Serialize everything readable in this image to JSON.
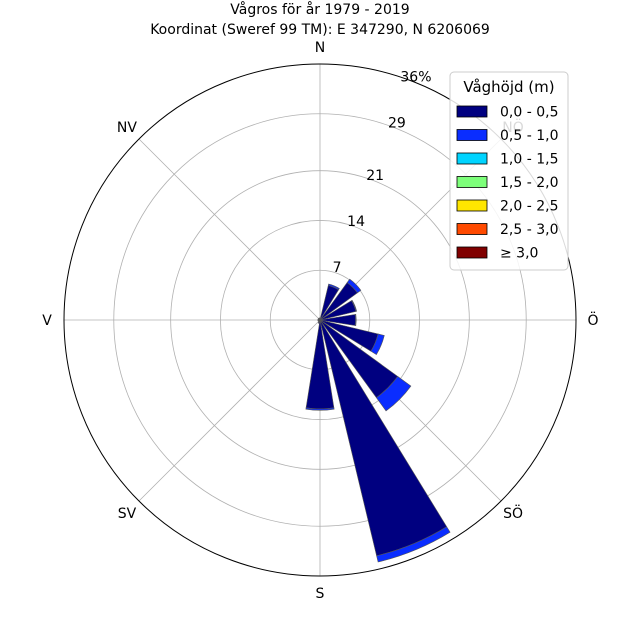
{
  "chart_data": {
    "type": "windrose",
    "title": "Vågros för år 1979 - 2019",
    "subtitle": "Koordinat (Sweref 99 TM): E 347290, N 6206069",
    "directions": [
      "N",
      "NÖ",
      "Ö",
      "SÖ",
      "S",
      "SV",
      "V",
      "NV"
    ],
    "direction_labels": [
      {
        "angle": 0,
        "label": "N"
      },
      {
        "angle": 45,
        "label": "NÖ"
      },
      {
        "angle": 90,
        "label": "Ö"
      },
      {
        "angle": 135,
        "label": "SÖ"
      },
      {
        "angle": 180,
        "label": "S"
      },
      {
        "angle": 225,
        "label": "SV"
      },
      {
        "angle": 270,
        "label": "V"
      },
      {
        "angle": 315,
        "label": "NV"
      }
    ],
    "radial_max": 36,
    "radial_ticks": [
      7,
      14,
      21,
      29,
      36
    ],
    "radial_tick_labels": [
      "7",
      "14",
      "21",
      "29",
      "36%"
    ],
    "legend_title": "Våghöjd (m)",
    "legend_position": "top-right",
    "bins": [
      {
        "label": "0,0 - 0,5",
        "color": "#000080"
      },
      {
        "label": "0,5 - 1,0",
        "color": "#0a2dff"
      },
      {
        "label": "1,0 - 1,5",
        "color": "#00d4ff"
      },
      {
        "label": "1,5 - 2,0",
        "color": "#7dff7a"
      },
      {
        "label": "2,0 - 2,5",
        "color": "#ffe600"
      },
      {
        "label": "2,5 - 3,0",
        "color": "#ff4a00"
      },
      {
        "label": "≥ 3,0",
        "color": "#800000"
      }
    ],
    "sectors": [
      {
        "direction": 22.5,
        "values": [
          5.0,
          0.2,
          0,
          0,
          0,
          0,
          0
        ]
      },
      {
        "direction": 45,
        "values": [
          6.5,
          0.6,
          0,
          0,
          0,
          0,
          0
        ]
      },
      {
        "direction": 67.5,
        "values": [
          5.2,
          0.1,
          0,
          0,
          0,
          0,
          0
        ]
      },
      {
        "direction": 90,
        "values": [
          5.0,
          0.1,
          0,
          0,
          0,
          0,
          0
        ]
      },
      {
        "direction": 112.5,
        "values": [
          8.4,
          0.9,
          0,
          0,
          0,
          0,
          0
        ]
      },
      {
        "direction": 135,
        "values": [
          13.5,
          2.3,
          0,
          0,
          0,
          0,
          0
        ]
      },
      {
        "direction": 157.5,
        "values": [
          34.1,
          0.9,
          0,
          0,
          0,
          0,
          0
        ]
      },
      {
        "direction": 180,
        "values": [
          12.5,
          0.2,
          0,
          0,
          0,
          0,
          0
        ]
      },
      {
        "direction": 202.5,
        "values": [
          0.5,
          0,
          0,
          0,
          0,
          0,
          0
        ]
      },
      {
        "direction": 225,
        "values": [
          0.3,
          0,
          0,
          0,
          0,
          0,
          0
        ]
      },
      {
        "direction": 247.5,
        "values": [
          0.3,
          0,
          0,
          0,
          0,
          0,
          0
        ]
      },
      {
        "direction": 270,
        "values": [
          0.3,
          0,
          0,
          0,
          0,
          0,
          0
        ]
      },
      {
        "direction": 292.5,
        "values": [
          0.3,
          0,
          0,
          0,
          0,
          0,
          0
        ]
      },
      {
        "direction": 315,
        "values": [
          0.3,
          0,
          0,
          0,
          0,
          0,
          0
        ]
      },
      {
        "direction": 337.5,
        "values": [
          0.3,
          0,
          0,
          0,
          0,
          0,
          0
        ]
      },
      {
        "direction": 0,
        "values": [
          0.3,
          0,
          0,
          0,
          0,
          0,
          0
        ]
      }
    ]
  }
}
